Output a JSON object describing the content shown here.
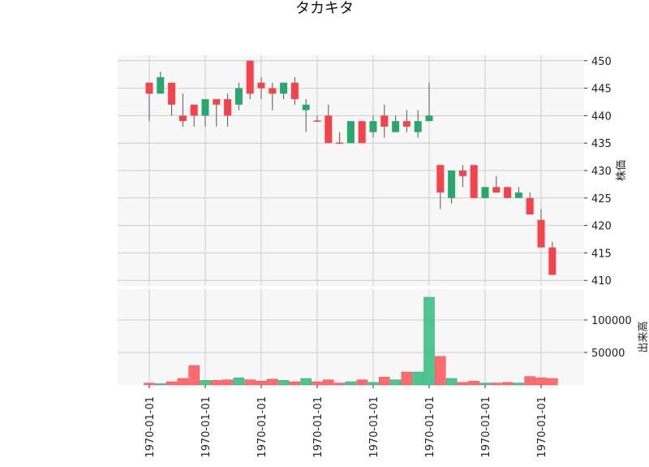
{
  "chart_data": {
    "type": "candlestick",
    "title": "タカキタ",
    "price_axis": {
      "label": "株価",
      "ylim": [
        409,
        451
      ],
      "ticks": [
        410,
        415,
        420,
        425,
        430,
        435,
        440,
        445,
        450
      ]
    },
    "volume_axis": {
      "label": "出来高",
      "ylim": [
        0,
        135000
      ],
      "ticks": [
        50000,
        100000
      ]
    },
    "x_tick_labels": [
      "1970-01-01",
      "1970-01-01",
      "1970-01-01",
      "1970-01-01",
      "1970-01-01",
      "1970-01-01",
      "1970-01-01",
      "1970-01-01"
    ],
    "x_tick_positions": [
      1,
      6,
      11,
      16,
      21,
      26,
      31,
      36
    ],
    "grid": true,
    "colors": {
      "up": "#26a96c",
      "down": "#f5424b",
      "volume_up": "#4cc590",
      "volume_down": "#ff6b6e",
      "wick": "#555555",
      "grid": "#cccccc",
      "panel_bg": "#f7f7f7"
    },
    "candles": [
      {
        "o": 446,
        "h": 446,
        "l": 439,
        "c": 444,
        "v": 3000
      },
      {
        "o": 444,
        "h": 448,
        "l": 444,
        "c": 447,
        "v": 2000
      },
      {
        "o": 446,
        "h": 446,
        "l": 440,
        "c": 442,
        "v": 5000
      },
      {
        "o": 440,
        "h": 444,
        "l": 438,
        "c": 439,
        "v": 10000
      },
      {
        "o": 442,
        "h": 442,
        "l": 438,
        "c": 440,
        "v": 30000
      },
      {
        "o": 440,
        "h": 443,
        "l": 438,
        "c": 443,
        "v": 7000
      },
      {
        "o": 443,
        "h": 443,
        "l": 438,
        "c": 442,
        "v": 7000
      },
      {
        "o": 443,
        "h": 444,
        "l": 438,
        "c": 440,
        "v": 8000
      },
      {
        "o": 442,
        "h": 446,
        "l": 441,
        "c": 445,
        "v": 11000
      },
      {
        "o": 450,
        "h": 450,
        "l": 443,
        "c": 444,
        "v": 8000
      },
      {
        "o": 446,
        "h": 447,
        "l": 443,
        "c": 445,
        "v": 6000
      },
      {
        "o": 445,
        "h": 446,
        "l": 441,
        "c": 444,
        "v": 9000
      },
      {
        "o": 444,
        "h": 446,
        "l": 443,
        "c": 446,
        "v": 7000
      },
      {
        "o": 446,
        "h": 447,
        "l": 442,
        "c": 443,
        "v": 5000
      },
      {
        "o": 441,
        "h": 443,
        "l": 437,
        "c": 442,
        "v": 10000
      },
      {
        "o": 439,
        "h": 440,
        "l": 439,
        "c": 439,
        "v": 5000
      },
      {
        "o": 440,
        "h": 442,
        "l": 435,
        "c": 435,
        "v": 8000
      },
      {
        "o": 435,
        "h": 437,
        "l": 435,
        "c": 435,
        "v": 3000
      },
      {
        "o": 435,
        "h": 439,
        "l": 435,
        "c": 439,
        "v": 5000
      },
      {
        "o": 439,
        "h": 439,
        "l": 435,
        "c": 435,
        "v": 8000
      },
      {
        "o": 437,
        "h": 440,
        "l": 436,
        "c": 439,
        "v": 4000
      },
      {
        "o": 440,
        "h": 442,
        "l": 436,
        "c": 438,
        "v": 12000
      },
      {
        "o": 437,
        "h": 440,
        "l": 437,
        "c": 439,
        "v": 8000
      },
      {
        "o": 439,
        "h": 441,
        "l": 437,
        "c": 438,
        "v": 20000
      },
      {
        "o": 437,
        "h": 441,
        "l": 436,
        "c": 439,
        "v": 20000
      },
      {
        "o": 439,
        "h": 446,
        "l": 439,
        "c": 440,
        "v": 135000
      },
      {
        "o": 431,
        "h": 431,
        "l": 423,
        "c": 426,
        "v": 44000
      },
      {
        "o": 425,
        "h": 430,
        "l": 424,
        "c": 430,
        "v": 10000
      },
      {
        "o": 430,
        "h": 431,
        "l": 427,
        "c": 429,
        "v": 4000
      },
      {
        "o": 431,
        "h": 431,
        "l": 425,
        "c": 425,
        "v": 6000
      },
      {
        "o": 425,
        "h": 427,
        "l": 425,
        "c": 427,
        "v": 3000
      },
      {
        "o": 427,
        "h": 429,
        "l": 426,
        "c": 426,
        "v": 3000
      },
      {
        "o": 427,
        "h": 427,
        "l": 425,
        "c": 425,
        "v": 4000
      },
      {
        "o": 425,
        "h": 427,
        "l": 425,
        "c": 426,
        "v": 3000
      },
      {
        "o": 425,
        "h": 426,
        "l": 422,
        "c": 422,
        "v": 13000
      },
      {
        "o": 421,
        "h": 423,
        "l": 416,
        "c": 416,
        "v": 11000
      },
      {
        "o": 416,
        "h": 417,
        "l": 411,
        "c": 411,
        "v": 10000
      }
    ]
  }
}
